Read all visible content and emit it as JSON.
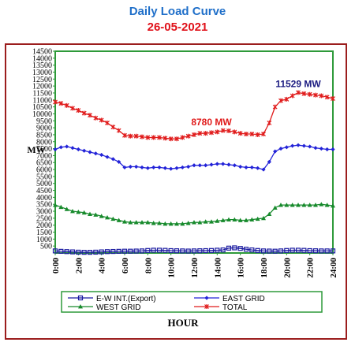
{
  "header": {
    "title": "Daily Load Curve",
    "date": "26-05-2021"
  },
  "chart_data": {
    "type": "line",
    "xlabel": "HOUR",
    "ylabel": "MW",
    "ylim": [
      0,
      14500
    ],
    "yticks": [
      500,
      1000,
      1500,
      2000,
      2500,
      3000,
      3500,
      4000,
      4500,
      5000,
      5500,
      6000,
      6500,
      7000,
      7500,
      8000,
      8500,
      9000,
      9500,
      10000,
      10500,
      11000,
      11500,
      12000,
      12500,
      13000,
      13500,
      14000,
      14500
    ],
    "xlim": [
      0,
      24
    ],
    "xticks": [
      "0:00",
      "2:00",
      "4:00",
      "6:00",
      "8:00",
      "10:00",
      "12:00",
      "14:00",
      "16:00",
      "18:00",
      "20:00",
      "22:00",
      "24:00"
    ],
    "x": [
      0,
      0.5,
      1,
      1.5,
      2,
      2.5,
      3,
      3.5,
      4,
      4.5,
      5,
      5.5,
      6,
      6.5,
      7,
      7.5,
      8,
      8.5,
      9,
      9.5,
      10,
      10.5,
      11,
      11.5,
      12,
      12.5,
      13,
      13.5,
      14,
      14.5,
      15,
      15.5,
      16,
      16.5,
      17,
      17.5,
      18,
      18.5,
      19,
      19.5,
      20,
      20.5,
      21,
      21.5,
      22,
      22.5,
      23,
      23.5,
      24
    ],
    "series": [
      {
        "name": "E-W INT.(Export)",
        "color": "#1a1aa0",
        "marker": "square",
        "values": [
          150,
          120,
          100,
          80,
          60,
          50,
          50,
          60,
          80,
          100,
          110,
          120,
          130,
          130,
          140,
          150,
          180,
          200,
          200,
          190,
          170,
          160,
          150,
          140,
          150,
          160,
          170,
          180,
          200,
          220,
          350,
          370,
          330,
          270,
          220,
          180,
          150,
          140,
          130,
          150,
          180,
          200,
          200,
          190,
          170,
          160,
          150,
          150,
          150
        ]
      },
      {
        "name": "EAST GRID",
        "color": "#2323d8",
        "marker": "diamond",
        "values": [
          7450,
          7600,
          7650,
          7550,
          7450,
          7350,
          7250,
          7150,
          7050,
          6900,
          6750,
          6550,
          6150,
          6200,
          6200,
          6150,
          6100,
          6150,
          6150,
          6100,
          6050,
          6100,
          6150,
          6200,
          6300,
          6300,
          6300,
          6350,
          6400,
          6400,
          6350,
          6300,
          6200,
          6150,
          6150,
          6100,
          6000,
          6550,
          7300,
          7500,
          7600,
          7700,
          7750,
          7700,
          7650,
          7550,
          7500,
          7450,
          7450
        ]
      },
      {
        "name": "WEST GRID",
        "color": "#178a2c",
        "marker": "triangle",
        "values": [
          3450,
          3300,
          3150,
          3000,
          2950,
          2900,
          2800,
          2750,
          2650,
          2550,
          2450,
          2350,
          2250,
          2200,
          2200,
          2200,
          2200,
          2150,
          2150,
          2100,
          2100,
          2100,
          2100,
          2150,
          2200,
          2200,
          2250,
          2250,
          2300,
          2350,
          2400,
          2400,
          2350,
          2350,
          2400,
          2450,
          2500,
          2800,
          3250,
          3450,
          3450,
          3450,
          3450,
          3450,
          3450,
          3450,
          3500,
          3450,
          3400
        ]
      },
      {
        "name": "TOTAL",
        "color": "#e01a1a",
        "marker": "star",
        "values": [
          10850,
          10750,
          10600,
          10400,
          10250,
          10050,
          9900,
          9700,
          9550,
          9350,
          9050,
          8800,
          8450,
          8400,
          8400,
          8350,
          8300,
          8300,
          8300,
          8250,
          8200,
          8200,
          8300,
          8400,
          8500,
          8600,
          8600,
          8650,
          8700,
          8800,
          8780,
          8700,
          8600,
          8550,
          8550,
          8500,
          8550,
          9350,
          10500,
          10950,
          11050,
          11300,
          11529,
          11450,
          11400,
          11350,
          11300,
          11200,
          11100
        ]
      }
    ],
    "annotations": [
      {
        "text": "8780 MW",
        "x": 13.5,
        "y": 8780,
        "color": "#e01a1a"
      },
      {
        "text": "11529 MW",
        "x": 21,
        "y": 11529,
        "color": "#1a1a80"
      }
    ],
    "legend": "bottom",
    "grid": false
  }
}
